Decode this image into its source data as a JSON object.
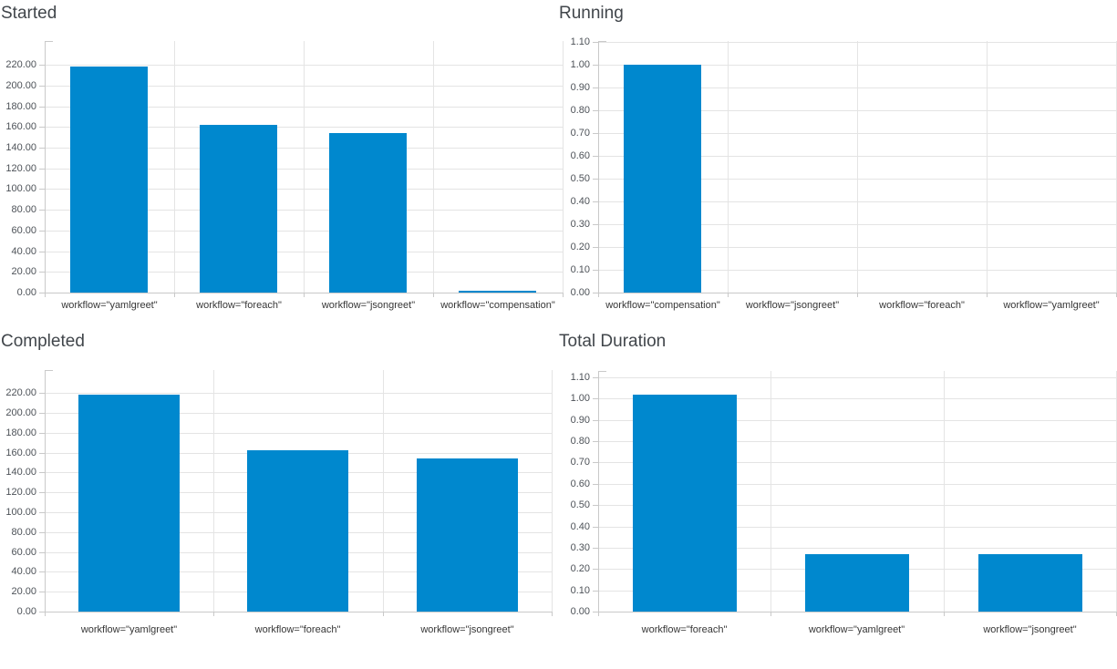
{
  "colors": {
    "bar": "#0088ce",
    "grid": "#e4e4e4",
    "axis": "#c9c9c9",
    "y_tick_label": "#4d5258",
    "category_label": "#363636",
    "title": "#41464b"
  },
  "chart_data": [
    {
      "type": "bar",
      "title": "Started",
      "categories": [
        "workflow=\"yamlgreet\"",
        "workflow=\"foreach\"",
        "workflow=\"jsongreet\"",
        "workflow=\"compensation\""
      ],
      "values": [
        218,
        162,
        154,
        2
      ],
      "ylim": [
        0,
        243
      ],
      "ytick_values": [
        0,
        20,
        40,
        60,
        80,
        100,
        120,
        140,
        160,
        180,
        200,
        220
      ],
      "ytick_labels": [
        "0.00",
        "20.00",
        "40.00",
        "60.00",
        "80.00",
        "100.00",
        "120.00",
        "140.00",
        "160.00",
        "180.00",
        "200.00",
        "220.00"
      ],
      "xlabel": "",
      "ylabel": "",
      "grid": true,
      "legend": "none",
      "bar_color": "#0088ce"
    },
    {
      "type": "bar",
      "title": "Running",
      "categories": [
        "workflow=\"compensation\"",
        "workflow=\"jsongreet\"",
        "workflow=\"foreach\"",
        "workflow=\"yamlgreet\""
      ],
      "values": [
        1.0,
        0,
        0,
        0
      ],
      "ylim": [
        0,
        1.102
      ],
      "ytick_values": [
        0,
        0.1,
        0.2,
        0.3,
        0.4,
        0.5,
        0.6,
        0.7,
        0.8,
        0.9,
        1.0,
        1.1
      ],
      "ytick_labels": [
        "0.00",
        "0.10",
        "0.20",
        "0.30",
        "0.40",
        "0.50",
        "0.60",
        "0.70",
        "0.80",
        "0.90",
        "1.00",
        "1.10"
      ],
      "xlabel": "",
      "ylabel": "",
      "grid": true,
      "legend": "none",
      "bar_color": "#0088ce"
    },
    {
      "type": "bar",
      "title": "Completed",
      "categories": [
        "workflow=\"yamlgreet\"",
        "workflow=\"foreach\"",
        "workflow=\"jsongreet\""
      ],
      "values": [
        218,
        162,
        154
      ],
      "ylim": [
        0,
        243
      ],
      "ytick_values": [
        0,
        20,
        40,
        60,
        80,
        100,
        120,
        140,
        160,
        180,
        200,
        220
      ],
      "ytick_labels": [
        "0.00",
        "20.00",
        "40.00",
        "60.00",
        "80.00",
        "100.00",
        "120.00",
        "140.00",
        "160.00",
        "180.00",
        "200.00",
        "220.00"
      ],
      "xlabel": "",
      "ylabel": "",
      "grid": true,
      "legend": "none",
      "bar_color": "#0088ce"
    },
    {
      "type": "bar",
      "title": "Total Duration",
      "categories": [
        "workflow=\"foreach\"",
        "workflow=\"yamlgreet\"",
        "workflow=\"jsongreet\""
      ],
      "values": [
        1.02,
        0.27,
        0.27
      ],
      "ylim": [
        0,
        1.13
      ],
      "ytick_values": [
        0,
        0.1,
        0.2,
        0.3,
        0.4,
        0.5,
        0.6,
        0.7,
        0.8,
        0.9,
        1.0,
        1.1
      ],
      "ytick_labels": [
        "0.00",
        "0.10",
        "0.20",
        "0.30",
        "0.40",
        "0.50",
        "0.60",
        "0.70",
        "0.80",
        "0.90",
        "1.00",
        "1.10"
      ],
      "xlabel": "",
      "ylabel": "",
      "grid": true,
      "legend": "none",
      "bar_color": "#0088ce"
    }
  ]
}
